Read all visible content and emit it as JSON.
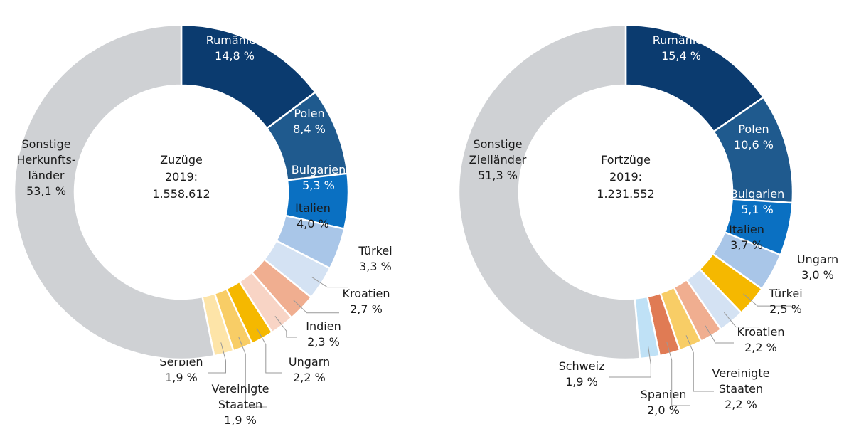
{
  "chart_data": [
    {
      "type": "pie",
      "donut": true,
      "center_text": [
        "Zuzüge",
        "2019:",
        "1.558.612"
      ],
      "categories": [
        "Rumänien",
        "Polen",
        "Bulgarien",
        "Italien",
        "Türkei",
        "Kroatien",
        "Indien",
        "Ungarn",
        "Vereinigte\nStaaten",
        "Serbien",
        "Sonstige\nHerkunfts-\nländer"
      ],
      "values": [
        14.8,
        8.4,
        5.3,
        4.0,
        3.3,
        2.7,
        2.3,
        2.2,
        1.9,
        1.9,
        53.1
      ],
      "value_labels": [
        "14,8 %",
        "8,4 %",
        "5,3 %",
        "4,0 %",
        "3,3 %",
        "2,7 %",
        "2,3 %",
        "2,2 %",
        "1,9 %",
        "1,9 %",
        "53,1 %"
      ],
      "colors": [
        "#0b3b6f",
        "#1f5a8e",
        "#0a70c2",
        "#a9c6e8",
        "#d4e2f3",
        "#f0ae90",
        "#f8d4c5",
        "#f5b800",
        "#f8cd66",
        "#fde4a8",
        "#cfd1d4"
      ]
    },
    {
      "type": "pie",
      "donut": true,
      "center_text": [
        "Fortzüge",
        "2019:",
        "1.231.552"
      ],
      "categories": [
        "Rumänien",
        "Polen",
        "Bulgarien",
        "Italien",
        "Ungarn",
        "Türkei",
        "Kroatien",
        "Vereinigte\nStaaten",
        "Spanien",
        "Schweiz",
        "Sonstige\nZielländer"
      ],
      "values": [
        15.4,
        10.6,
        5.1,
        3.7,
        3.0,
        2.5,
        2.2,
        2.2,
        2.0,
        1.9,
        51.3
      ],
      "value_labels": [
        "15,4 %",
        "10,6 %",
        "5,1 %",
        "3,7 %",
        "3,0 %",
        "2,5 %",
        "2,2 %",
        "2,2 %",
        "2,0 %",
        "1,9 %",
        "51,3 %"
      ],
      "colors": [
        "#0b3b6f",
        "#1f5a8e",
        "#0a70c2",
        "#a9c6e8",
        "#f5b800",
        "#d4e2f3",
        "#f0ae90",
        "#f8cd66",
        "#e07b54",
        "#bfe1f6",
        "#cfd1d4"
      ]
    }
  ]
}
